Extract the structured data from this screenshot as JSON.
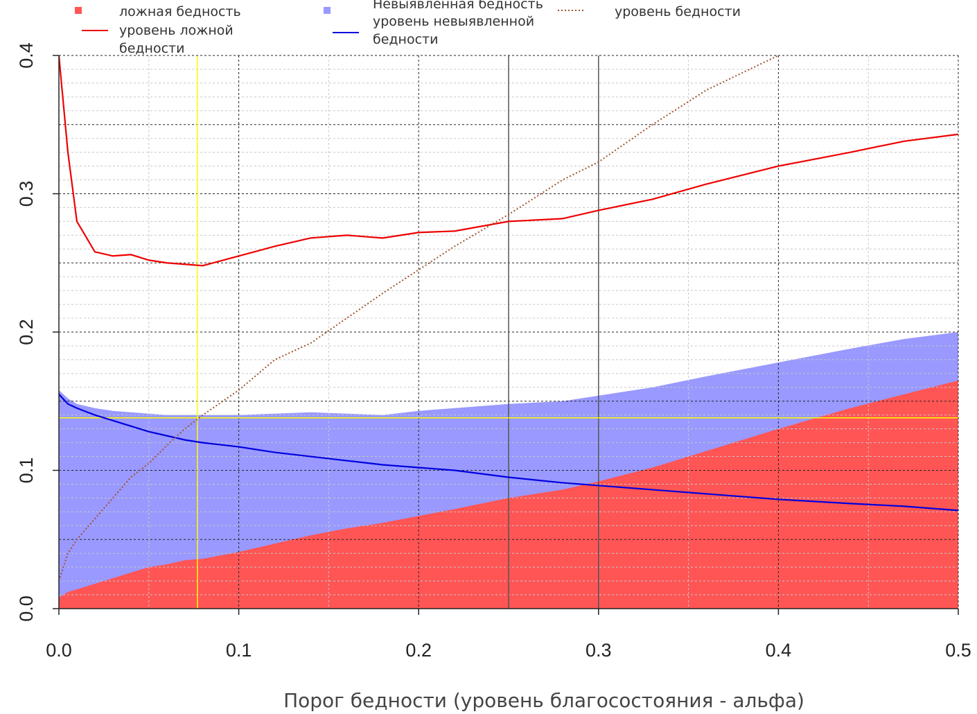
{
  "chart_data": {
    "type": "area",
    "x_label": "Порог бедности (уровень благосостояния - альфа)",
    "x": [
      0,
      0.005,
      0.01,
      0.02,
      0.03,
      0.04,
      0.05,
      0.06,
      0.07,
      0.08,
      0.1,
      0.12,
      0.14,
      0.16,
      0.18,
      0.2,
      0.22,
      0.25,
      0.28,
      0.3,
      0.33,
      0.36,
      0.4,
      0.44,
      0.47,
      0.5
    ],
    "series": [
      {
        "name": "Невыявленная бедность",
        "kind": "area",
        "color": "#9999ff",
        "values": [
          0.158,
          0.152,
          0.148,
          0.145,
          0.143,
          0.142,
          0.141,
          0.14,
          0.14,
          0.14,
          0.14,
          0.141,
          0.142,
          0.141,
          0.14,
          0.143,
          0.145,
          0.148,
          0.15,
          0.154,
          0.16,
          0.168,
          0.178,
          0.188,
          0.195,
          0.2
        ]
      },
      {
        "name": "ложная бедность",
        "kind": "area",
        "color": "#ff5555",
        "values": [
          0.008,
          0.012,
          0.014,
          0.018,
          0.022,
          0.026,
          0.03,
          0.032,
          0.035,
          0.036,
          0.041,
          0.047,
          0.053,
          0.058,
          0.062,
          0.067,
          0.072,
          0.08,
          0.086,
          0.092,
          0.102,
          0.114,
          0.13,
          0.145,
          0.155,
          0.165
        ]
      },
      {
        "name": "уровень ложной бедности",
        "kind": "line",
        "color": "#ee0000",
        "dash": "solid",
        "values": [
          0.4,
          0.33,
          0.28,
          0.258,
          0.255,
          0.256,
          0.252,
          0.25,
          0.249,
          0.248,
          0.255,
          0.262,
          0.268,
          0.27,
          0.268,
          0.272,
          0.273,
          0.28,
          0.282,
          0.288,
          0.296,
          0.307,
          0.32,
          0.33,
          0.338,
          0.343
        ]
      },
      {
        "name": "уровень невыявленной бедности",
        "kind": "line",
        "color": "#0000dd",
        "dash": "solid",
        "values": [
          0.155,
          0.148,
          0.145,
          0.14,
          0.136,
          0.132,
          0.128,
          0.125,
          0.122,
          0.12,
          0.117,
          0.113,
          0.11,
          0.107,
          0.104,
          0.102,
          0.1,
          0.095,
          0.091,
          0.089,
          0.086,
          0.083,
          0.079,
          0.076,
          0.074,
          0.071
        ]
      },
      {
        "name": "уровень бедности",
        "kind": "line",
        "color": "#a0522d",
        "dash": "dotted",
        "values": [
          0.02,
          0.04,
          0.05,
          0.065,
          0.08,
          0.095,
          0.105,
          0.118,
          0.13,
          0.14,
          0.158,
          0.18,
          0.192,
          0.21,
          0.228,
          0.245,
          0.262,
          0.285,
          0.31,
          0.323,
          0.35,
          0.375,
          0.4,
          null,
          null,
          null
        ]
      }
    ],
    "xlim": [
      0,
      0.5
    ],
    "ylim": [
      0,
      0.4
    ],
    "xticks": [
      {
        "value": 0,
        "label": "0.0"
      },
      0.1,
      0.2,
      0.3,
      0.4,
      0.5
    ],
    "yticks": [
      {
        "value": 0,
        "label": "0.0"
      },
      0.1,
      0.2,
      0.3,
      0.4
    ],
    "grid": true,
    "xgrid_minor": [
      0.05,
      0.15,
      0.25,
      0.35,
      0.45
    ],
    "ygrid_major": [
      0.05,
      0.15,
      0.25,
      0.35
    ],
    "ygrid_minor": [
      0.01,
      0.02,
      0.03,
      0.04,
      0.06,
      0.07,
      0.08,
      0.09,
      0.11,
      0.12,
      0.13,
      0.14,
      0.16,
      0.17,
      0.18,
      0.19,
      0.21,
      0.22,
      0.23,
      0.24,
      0.26,
      0.27,
      0.28,
      0.29,
      0.31,
      0.32,
      0.33,
      0.34,
      0.36,
      0.37,
      0.38,
      0.39
    ],
    "vlines": [
      {
        "value": 0.077,
        "color": "#ffff00"
      },
      {
        "value": 0.25,
        "color": "#555555"
      },
      {
        "value": 0.3,
        "color": "#555555"
      }
    ],
    "hlines": [
      {
        "value": 0.138,
        "color": "#ffff00"
      }
    ]
  }
}
